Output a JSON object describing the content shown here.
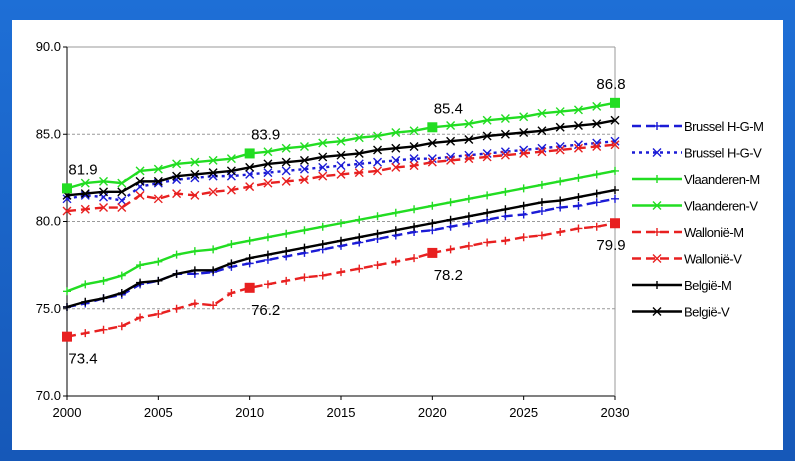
{
  "chart_data": {
    "type": "line",
    "title": "",
    "xlabel": "",
    "ylabel": "",
    "xlim": [
      2000,
      2030
    ],
    "ylim": [
      70,
      90
    ],
    "x_ticks": [
      2000,
      2005,
      2010,
      2015,
      2020,
      2025,
      2030
    ],
    "y_ticks": [
      "70.0",
      "75.0",
      "80.0",
      "85.0",
      "90.0"
    ],
    "grid": "horizontal dashed",
    "legend": "right",
    "x": [
      2000,
      2001,
      2002,
      2003,
      2004,
      2005,
      2006,
      2007,
      2008,
      2009,
      2010,
      2011,
      2012,
      2013,
      2014,
      2015,
      2016,
      2017,
      2018,
      2019,
      2020,
      2021,
      2022,
      2023,
      2024,
      2025,
      2026,
      2027,
      2028,
      2029,
      2030
    ],
    "series": [
      {
        "name": "Brussel H-G-M",
        "color": "#1b1bd6",
        "dash": "dashed",
        "marker": "plus",
        "values": [
          75.1,
          75.3,
          75.6,
          75.8,
          76.4,
          76.6,
          77.0,
          77.0,
          77.1,
          77.4,
          77.6,
          77.8,
          78.0,
          78.2,
          78.4,
          78.6,
          78.8,
          79.0,
          79.2,
          79.4,
          79.5,
          79.7,
          79.9,
          80.1,
          80.3,
          80.4,
          80.6,
          80.8,
          80.9,
          81.1,
          81.3
        ]
      },
      {
        "name": "Brussel H-G-V",
        "color": "#1b1bd6",
        "dash": "dotted",
        "marker": "x",
        "values": [
          81.3,
          81.5,
          81.4,
          81.2,
          82.0,
          82.2,
          82.4,
          82.5,
          82.6,
          82.6,
          82.7,
          82.8,
          82.9,
          83.0,
          83.1,
          83.2,
          83.3,
          83.4,
          83.5,
          83.6,
          83.6,
          83.7,
          83.8,
          83.9,
          84.0,
          84.1,
          84.2,
          84.3,
          84.4,
          84.5,
          84.6
        ]
      },
      {
        "name": "Vlaanderen-M",
        "color": "#22dd22",
        "dash": "solid",
        "marker": "plus",
        "values": [
          76.0,
          76.4,
          76.6,
          76.9,
          77.5,
          77.7,
          78.1,
          78.3,
          78.4,
          78.7,
          78.9,
          79.1,
          79.3,
          79.5,
          79.7,
          79.9,
          80.1,
          80.3,
          80.5,
          80.7,
          80.9,
          81.1,
          81.3,
          81.5,
          81.7,
          81.9,
          82.1,
          82.3,
          82.5,
          82.7,
          82.9
        ]
      },
      {
        "name": "Vlaanderen-V",
        "color": "#22dd22",
        "dash": "solid",
        "marker": "x",
        "values": [
          81.9,
          82.2,
          82.3,
          82.2,
          82.9,
          83.0,
          83.3,
          83.4,
          83.5,
          83.6,
          83.9,
          84.0,
          84.2,
          84.3,
          84.5,
          84.6,
          84.8,
          84.9,
          85.1,
          85.2,
          85.4,
          85.5,
          85.6,
          85.8,
          85.9,
          86.0,
          86.2,
          86.3,
          86.4,
          86.6,
          86.8
        ]
      },
      {
        "name": "Wallonië-M",
        "color": "#e82020",
        "dash": "dashed",
        "marker": "plus",
        "values": [
          73.4,
          73.6,
          73.8,
          74.0,
          74.5,
          74.7,
          75.0,
          75.3,
          75.2,
          75.9,
          76.2,
          76.4,
          76.6,
          76.8,
          76.9,
          77.1,
          77.3,
          77.5,
          77.7,
          77.9,
          78.2,
          78.4,
          78.6,
          78.8,
          78.9,
          79.1,
          79.2,
          79.4,
          79.6,
          79.7,
          79.9
        ]
      },
      {
        "name": "Wallonië-V",
        "color": "#e82020",
        "dash": "dashed",
        "marker": "x",
        "values": [
          80.6,
          80.7,
          80.8,
          80.8,
          81.5,
          81.3,
          81.6,
          81.5,
          81.7,
          81.8,
          82.0,
          82.2,
          82.3,
          82.4,
          82.6,
          82.7,
          82.8,
          82.9,
          83.1,
          83.2,
          83.4,
          83.5,
          83.6,
          83.7,
          83.8,
          83.9,
          84.0,
          84.1,
          84.2,
          84.3,
          84.4
        ]
      },
      {
        "name": "België-M",
        "color": "#000000",
        "dash": "solid",
        "marker": "plus",
        "values": [
          75.1,
          75.4,
          75.6,
          75.9,
          76.5,
          76.6,
          77.0,
          77.2,
          77.2,
          77.6,
          77.9,
          78.1,
          78.3,
          78.5,
          78.7,
          78.9,
          79.1,
          79.3,
          79.5,
          79.7,
          79.9,
          80.1,
          80.3,
          80.5,
          80.7,
          80.9,
          81.1,
          81.2,
          81.4,
          81.6,
          81.8
        ]
      },
      {
        "name": "België-V",
        "color": "#000000",
        "dash": "solid",
        "marker": "x",
        "values": [
          81.5,
          81.6,
          81.7,
          81.7,
          82.3,
          82.3,
          82.6,
          82.7,
          82.8,
          82.9,
          83.1,
          83.3,
          83.4,
          83.5,
          83.7,
          83.8,
          83.9,
          84.1,
          84.2,
          84.3,
          84.5,
          84.6,
          84.7,
          84.9,
          85.0,
          85.1,
          85.2,
          85.4,
          85.5,
          85.6,
          85.8
        ]
      }
    ],
    "annotations": [
      {
        "x": 2000,
        "y": 81.9,
        "text": "81.9",
        "color": "#22dd22",
        "pos": "above"
      },
      {
        "x": 2010,
        "y": 83.9,
        "text": "83.9",
        "color": "#22dd22",
        "pos": "above"
      },
      {
        "x": 2020,
        "y": 85.4,
        "text": "85.4",
        "color": "#22dd22",
        "pos": "above"
      },
      {
        "x": 2030,
        "y": 86.8,
        "text": "86.8",
        "color": "#22dd22",
        "pos": "above"
      },
      {
        "x": 2000,
        "y": 73.4,
        "text": "73.4",
        "color": "#e82020",
        "pos": "below"
      },
      {
        "x": 2010,
        "y": 76.2,
        "text": "76.2",
        "color": "#e82020",
        "pos": "below"
      },
      {
        "x": 2020,
        "y": 78.2,
        "text": "78.2",
        "color": "#e82020",
        "pos": "below"
      },
      {
        "x": 2030,
        "y": 79.9,
        "text": "79.9",
        "color": "#e82020",
        "pos": "below"
      }
    ]
  }
}
